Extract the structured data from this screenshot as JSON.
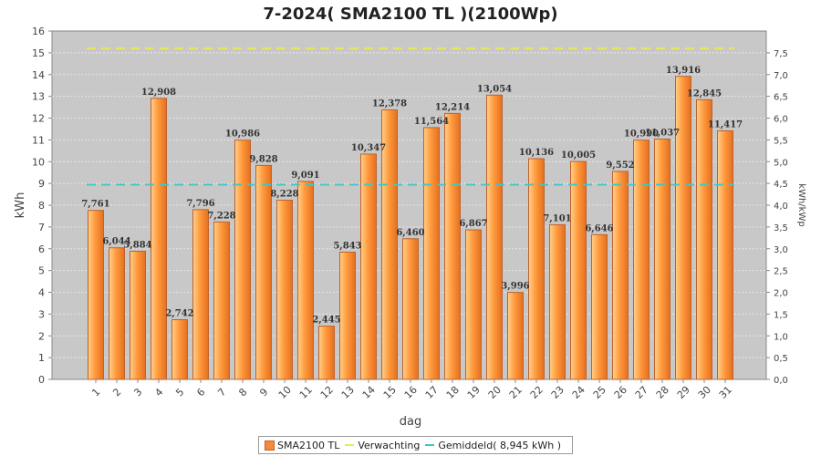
{
  "chart_data": {
    "type": "bar",
    "title": "7-2024( SMA2100 TL )(2100Wp)",
    "xlabel": "dag",
    "ylabel": "kWh",
    "ylabel_right": "kWh/kWp",
    "ylim": [
      0,
      16
    ],
    "ylim_right": [
      0,
      8
    ],
    "yticks": [
      "0",
      "1",
      "2",
      "3",
      "4",
      "5",
      "6",
      "7",
      "8",
      "9",
      "10",
      "11",
      "12",
      "13",
      "14",
      "15",
      "16"
    ],
    "yticks_right": [
      "0,0",
      "0,5",
      "1,0",
      "1,5",
      "2,0",
      "2,5",
      "3,0",
      "3,5",
      "4,0",
      "4,5",
      "5,0",
      "5,5",
      "6,0",
      "6,5",
      "7,0",
      "7,5"
    ],
    "categories": [
      "1",
      "2",
      "3",
      "4",
      "5",
      "6",
      "7",
      "8",
      "9",
      "10",
      "11",
      "12",
      "13",
      "14",
      "15",
      "16",
      "17",
      "18",
      "19",
      "20",
      "21",
      "22",
      "23",
      "24",
      "25",
      "26",
      "27",
      "28",
      "29",
      "30",
      "31"
    ],
    "series": [
      {
        "name": "SMA2100 TL",
        "values": [
          7.761,
          6.044,
          5.884,
          12.908,
          2.742,
          7.796,
          7.228,
          10.986,
          9.828,
          8.228,
          9.091,
          2.445,
          5.843,
          10.347,
          12.378,
          6.46,
          11.564,
          12.214,
          6.867,
          13.054,
          3.996,
          10.136,
          7.101,
          10.005,
          6.646,
          9.552,
          10.99,
          11.037,
          13.916,
          12.845,
          11.417
        ],
        "labels": [
          "7,761",
          "6,044",
          "5,884",
          "12,908",
          "2,742",
          "7,796",
          "7,228",
          "10,986",
          "9,828",
          "8,228",
          "9,091",
          "2,445",
          "5,843",
          "10,347",
          "12,378",
          "6,460",
          "11,564",
          "12,214",
          "6,867",
          "13,054",
          "3,996",
          "10,136",
          "7,101",
          "10,005",
          "6,646",
          "9,552",
          "10,990",
          "11,037",
          "13,916",
          "12,845",
          "11,417"
        ]
      }
    ],
    "expected": 15.2,
    "average": 8.945,
    "legend": {
      "bar": "SMA2100 TL",
      "expected": "Verwachting",
      "average": "Gemiddeld( 8,945 kWh )"
    },
    "colors": {
      "bar": "#f58a3a",
      "bar_border": "#c0622a",
      "expected": "#e8e85a",
      "average": "#3ec8c8",
      "plot_bg": "#c8c8c8"
    }
  }
}
